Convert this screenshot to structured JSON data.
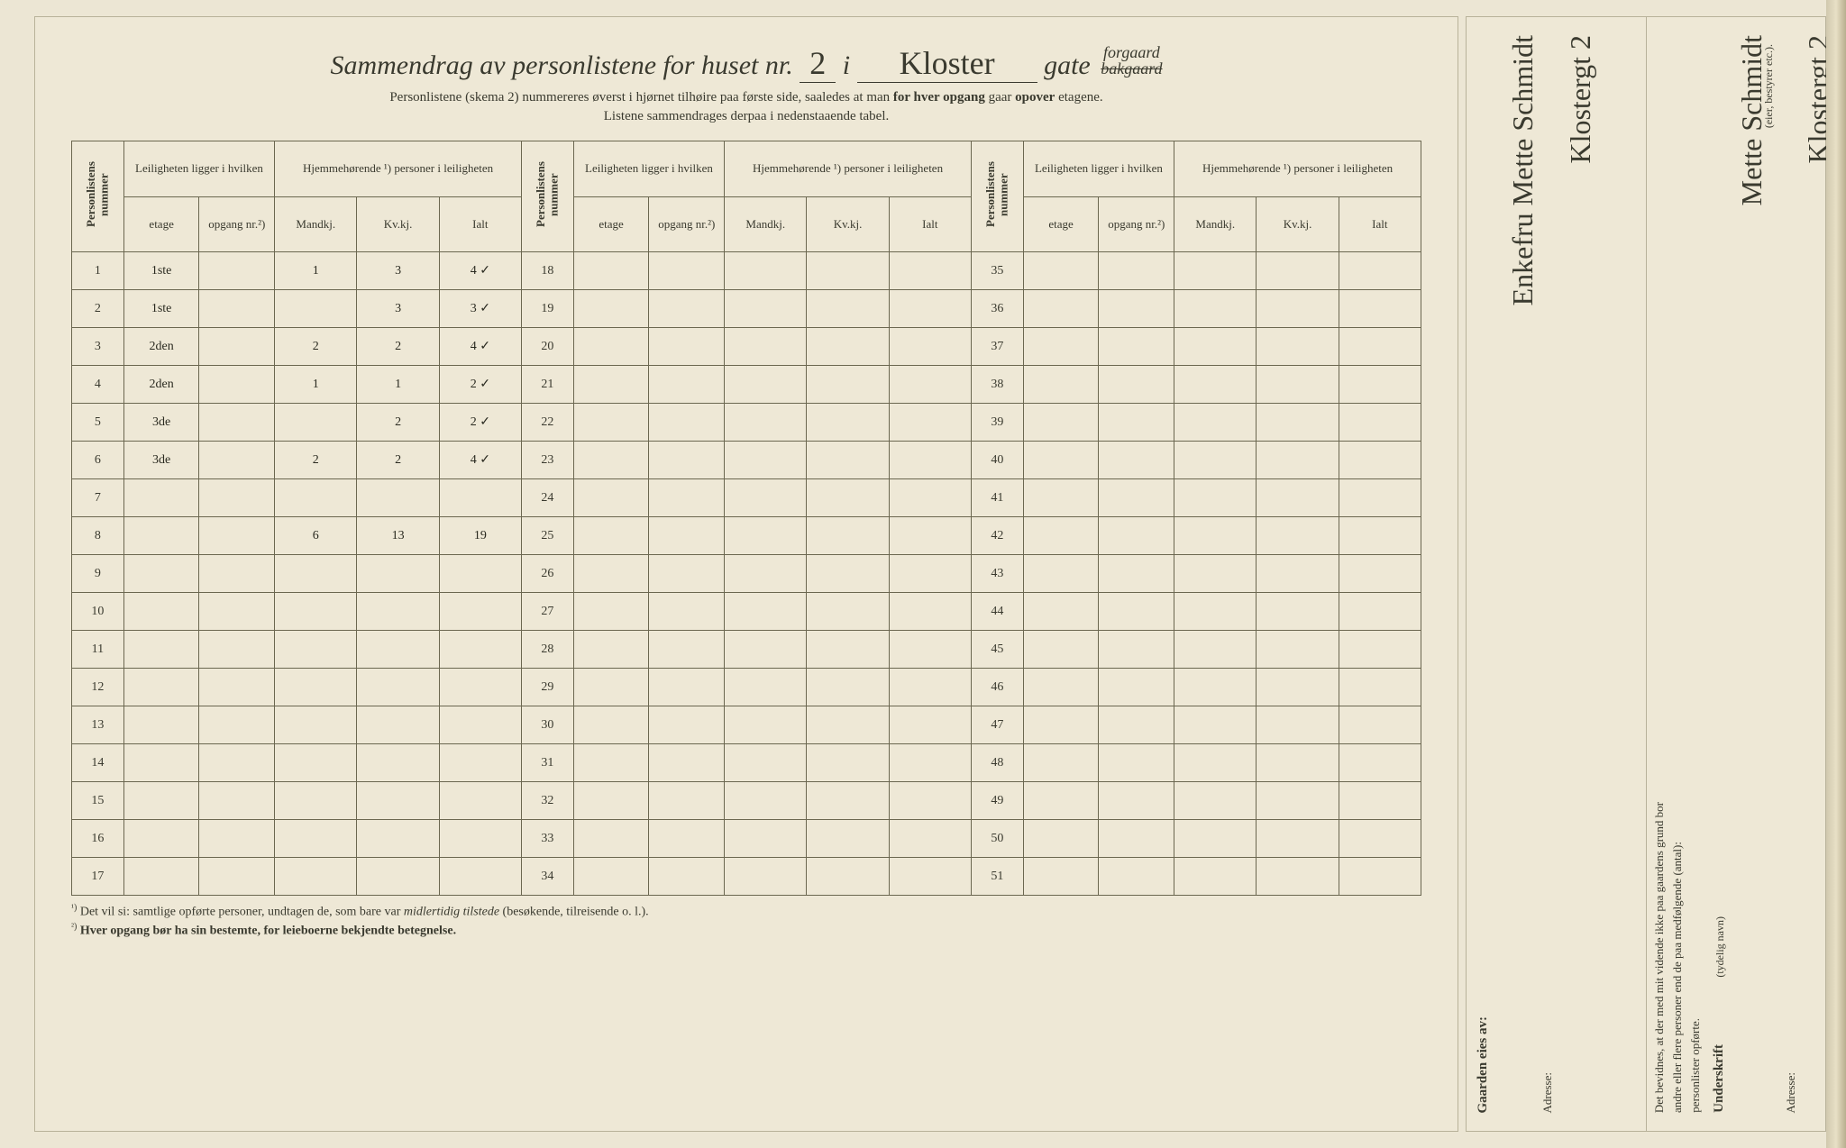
{
  "title": {
    "prefix": "Sammendrag av personlistene for huset nr.",
    "house_nr": "2",
    "i": "i",
    "street": "Kloster",
    "gate": "gate",
    "suffix_top": "forgaard",
    "suffix_bottom": "bakgaard"
  },
  "sub_line1": "Personlistene (skema 2) nummereres øverst i hjørnet tilhøire paa første side, saaledes at man",
  "sub_bold1": "for hver opgang",
  "sub_mid": "gaar",
  "sub_bold2": "opover",
  "sub_end": "etagene.",
  "sub_line2": "Listene sammendrages derpaa i nedenstaaende tabel.",
  "headers": {
    "personlistens": "Personlistens nummer",
    "leiligheten_top": "Leiligheten ligger i hvilken",
    "hjemme_top": "Hjemmehørende ¹) personer i leiligheten",
    "etage": "etage",
    "opgang": "opgang nr.²)",
    "mandkj": "Mandkj.",
    "kvkj": "Kv.kj.",
    "ialt": "Ialt"
  },
  "rows_block1": [
    {
      "n": "1",
      "etage": "1ste",
      "op": "",
      "m": "1",
      "k": "3",
      "i": "4 ✓"
    },
    {
      "n": "2",
      "etage": "1ste",
      "op": "",
      "m": "",
      "k": "3",
      "i": "3 ✓"
    },
    {
      "n": "3",
      "etage": "2den",
      "op": "",
      "m": "2",
      "k": "2",
      "i": "4 ✓"
    },
    {
      "n": "4",
      "etage": "2den",
      "op": "",
      "m": "1",
      "k": "1",
      "i": "2 ✓"
    },
    {
      "n": "5",
      "etage": "3de",
      "op": "",
      "m": "",
      "k": "2",
      "i": "2 ✓"
    },
    {
      "n": "6",
      "etage": "3de",
      "op": "",
      "m": "2",
      "k": "2",
      "i": "4 ✓"
    },
    {
      "n": "7",
      "etage": "",
      "op": "",
      "m": "",
      "k": "",
      "i": ""
    },
    {
      "n": "8",
      "etage": "",
      "op": "",
      "m": "6",
      "k": "13",
      "i": "19"
    },
    {
      "n": "9",
      "etage": "",
      "op": "",
      "m": "",
      "k": "",
      "i": ""
    },
    {
      "n": "10",
      "etage": "",
      "op": "",
      "m": "",
      "k": "",
      "i": ""
    },
    {
      "n": "11",
      "etage": "",
      "op": "",
      "m": "",
      "k": "",
      "i": ""
    },
    {
      "n": "12",
      "etage": "",
      "op": "",
      "m": "",
      "k": "",
      "i": ""
    },
    {
      "n": "13",
      "etage": "",
      "op": "",
      "m": "",
      "k": "",
      "i": ""
    },
    {
      "n": "14",
      "etage": "",
      "op": "",
      "m": "",
      "k": "",
      "i": ""
    },
    {
      "n": "15",
      "etage": "",
      "op": "",
      "m": "",
      "k": "",
      "i": ""
    },
    {
      "n": "16",
      "etage": "",
      "op": "",
      "m": "",
      "k": "",
      "i": ""
    },
    {
      "n": "17",
      "etage": "",
      "op": "",
      "m": "",
      "k": "",
      "i": ""
    }
  ],
  "rows_block2_start": 18,
  "rows_block3_start": 35,
  "num_rows": 17,
  "footnote1_sup": "¹)",
  "footnote1": "Det vil si: samtlige opførte personer, undtagen de, som bare var",
  "footnote1_i": "midlertidig tilstede",
  "footnote1_end": "(besøkende, tilreisende o. l.).",
  "footnote2_sup": "²)",
  "footnote2": "Hver opgang bør ha sin bestemte, for leieboerne bekjendte betegnelse.",
  "side": {
    "gaarden": "Gaarden eies av:",
    "owner": "Enkefru Mette Schmidt",
    "adresse_label": "Adresse:",
    "adresse": "Klostergt 2",
    "bevidnes1": "Det bevidnes, at der med mit vidende ikke paa gaardens grund bor",
    "bevidnes2": "andre eller flere personer end de paa medfølgende (antal):",
    "bevidnes3": "personlister opførte.",
    "underskrift_label": "Underskrift",
    "underskrift_paren": "(tydelig navn)",
    "underskrift": "Mette Schmidt",
    "eier_paren": "(eier, bestyrer etc.).",
    "side_adresse": "Klostergt 2"
  },
  "colors": {
    "bg": "#ece6d4",
    "paper": "#eee8d6",
    "ink": "#3a3a2f",
    "rule": "#6b6750"
  }
}
